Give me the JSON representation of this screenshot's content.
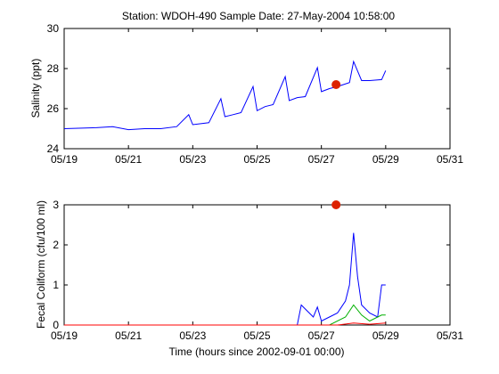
{
  "title": "Station: WDOH-490  Sample Date: 27-May-2004 10:58:00",
  "colors": {
    "blue": "#0000ff",
    "green": "#00b000",
    "red": "#ff0000",
    "marker": "#dd2200",
    "axis": "#000000"
  },
  "chart_data": [
    {
      "type": "line",
      "title": "Station: WDOH-490  Sample Date: 27-May-2004 10:58:00",
      "ylabel": "Salinity (ppt)",
      "xlabel": "",
      "xlim": [
        "2004-05-19",
        "2004-05-31"
      ],
      "ylim": [
        24,
        30
      ],
      "xtick_labels": [
        "05/19",
        "05/21",
        "05/23",
        "05/25",
        "05/27",
        "05/29",
        "05/31"
      ],
      "ytick_labels": [
        "24",
        "26",
        "28",
        "30"
      ],
      "grid": false,
      "series": [
        {
          "color": "blue",
          "x": [
            "2004-05-19",
            "2004-05-20",
            "2004-05-20 12:00",
            "2004-05-21",
            "2004-05-21 12:00",
            "2004-05-22",
            "2004-05-22 12:00",
            "2004-05-22 21:00",
            "2004-05-23",
            "2004-05-23 06:00",
            "2004-05-23 12:00",
            "2004-05-23 21:00",
            "2004-05-24",
            "2004-05-24 06:00",
            "2004-05-24 12:00",
            "2004-05-24 21:00",
            "2004-05-25",
            "2004-05-25 06:00",
            "2004-05-25 12:00",
            "2004-05-25 21:00",
            "2004-05-26",
            "2004-05-26 06:00",
            "2004-05-26 12:00",
            "2004-05-26 21:00",
            "2004-05-27",
            "2004-05-27 06:00",
            "2004-05-27 12:00",
            "2004-05-27 21:00",
            "2004-05-28",
            "2004-05-28 06:00",
            "2004-05-28 12:00",
            "2004-05-28 21:00",
            "2004-05-29"
          ],
          "y": [
            25.0,
            25.05,
            25.1,
            24.95,
            25.0,
            25.0,
            25.1,
            25.7,
            25.2,
            25.25,
            25.3,
            26.5,
            25.6,
            25.7,
            25.8,
            27.1,
            25.9,
            26.1,
            26.2,
            27.6,
            26.4,
            26.55,
            26.6,
            28.05,
            26.85,
            27.0,
            27.1,
            27.3,
            28.35,
            27.4,
            27.4,
            27.45,
            27.9
          ]
        }
      ],
      "sample_marker": {
        "x": "2004-05-27 10:58",
        "y": 27.2
      }
    },
    {
      "type": "line",
      "title": "",
      "ylabel": "Fecal Coliform (cfu/100 ml)",
      "xlabel": "Time (hours since 2002-09-01 00:00)",
      "xlim": [
        "2004-05-19",
        "2004-05-31"
      ],
      "ylim": [
        0,
        3
      ],
      "xtick_labels": [
        "05/19",
        "05/21",
        "05/23",
        "05/25",
        "05/27",
        "05/29",
        "05/31"
      ],
      "ytick_labels": [
        "0",
        "1",
        "2",
        "3"
      ],
      "grid": false,
      "series": [
        {
          "color": "blue",
          "x": [
            "2004-05-19",
            "2004-05-26 06:00",
            "2004-05-26 09:00",
            "2004-05-26 12:00",
            "2004-05-26 18:00",
            "2004-05-26 21:00",
            "2004-05-27",
            "2004-05-27 06:00",
            "2004-05-27 12:00",
            "2004-05-27 18:00",
            "2004-05-27 21:00",
            "2004-05-28",
            "2004-05-28 03:00",
            "2004-05-28 06:00",
            "2004-05-28 12:00",
            "2004-05-28 18:00",
            "2004-05-28 21:00",
            "2004-05-29"
          ],
          "y": [
            0.0,
            0.0,
            0.5,
            0.4,
            0.2,
            0.45,
            0.1,
            0.2,
            0.3,
            0.6,
            1.0,
            2.3,
            1.2,
            0.5,
            0.3,
            0.2,
            1.0,
            1.0
          ]
        },
        {
          "color": "green",
          "x": [
            "2004-05-19",
            "2004-05-27 06:00",
            "2004-05-27 18:00",
            "2004-05-28",
            "2004-05-28 06:00",
            "2004-05-28 12:00",
            "2004-05-28 21:00",
            "2004-05-29"
          ],
          "y": [
            0.0,
            0.0,
            0.2,
            0.5,
            0.25,
            0.1,
            0.25,
            0.25
          ]
        },
        {
          "color": "red",
          "x": [
            "2004-05-19",
            "2004-05-27 12:00",
            "2004-05-28",
            "2004-05-28 12:00",
            "2004-05-29"
          ],
          "y": [
            0.0,
            0.0,
            0.05,
            0.02,
            0.05
          ]
        }
      ],
      "sample_marker": {
        "x": "2004-05-27 10:58",
        "y": 3.0
      }
    }
  ]
}
